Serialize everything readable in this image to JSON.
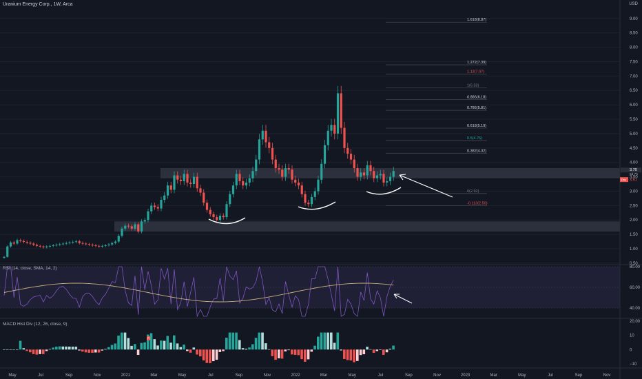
{
  "header": {
    "title": "Uranium Energy Corp., 1W, Arca",
    "currency": "USD"
  },
  "rsi_label": "RSI (14, close, SMA, 14, 2)",
  "macd_label": "MACD Hist Div (12, 26, close, 9)",
  "macd_marker": "R",
  "price_tags": {
    "current": "3.70",
    "countdown": "5d 7h",
    "pre": "3.51",
    "pre_label": "Pre"
  },
  "x_axis_labels": [
    "May",
    "Jul",
    "Sep",
    "Nov",
    "2021",
    "Mar",
    "May",
    "Jul",
    "Sep",
    "Nov",
    "2022",
    "Mar",
    "May",
    "Jul",
    "Sep",
    "Nov",
    "2023",
    "Mar",
    "May",
    "Jul",
    "Sep",
    "Nov"
  ],
  "chart_data": {
    "type": "candlestick",
    "title": "Uranium Energy Corp., 1W, Arca",
    "y_axis_ticks": [
      0.5,
      1.0,
      1.5,
      2.0,
      2.5,
      3.0,
      3.5,
      4.0,
      4.5,
      5.0,
      5.5,
      6.0,
      6.5,
      7.0,
      7.5,
      8.0,
      8.5,
      9.0
    ],
    "y_axis_tick_labels": [
      "0.50",
      "1.00",
      "1.50",
      "2.00",
      "2.50",
      "3.00",
      "3.50",
      "4.00",
      "4.50",
      "5.00",
      "5.50",
      "6.00",
      "6.50",
      "7.00",
      "7.50",
      "8.00",
      "8.50",
      "9.00"
    ],
    "ylim": [
      0.45,
      9.45
    ],
    "colors": {
      "up": "#26a69a",
      "down": "#ef5350",
      "rsi": "#7e57c2",
      "rsi_ma": "#c9b37e",
      "fib_gold": "#d1d4dc"
    },
    "candles_close": [
      0.72,
      1.08,
      1.22,
      1.18,
      1.3,
      1.27,
      1.24,
      1.21,
      1.18,
      1.14,
      1.1,
      1.08,
      1.05,
      1.08,
      1.1,
      1.12,
      1.14,
      1.16,
      1.18,
      1.2,
      1.22,
      1.24,
      1.26,
      1.2,
      1.18,
      1.16,
      1.14,
      1.12,
      1.1,
      1.08,
      1.1,
      1.12,
      1.15,
      1.2,
      1.25,
      1.45,
      1.7,
      1.8,
      1.78,
      1.7,
      1.85,
      1.6,
      1.95,
      2.0,
      2.3,
      2.5,
      2.45,
      2.4,
      2.7,
      2.85,
      3.2,
      3.05,
      3.55,
      3.4,
      3.35,
      3.6,
      3.3,
      3.25,
      3.5,
      3.1,
      2.95,
      2.6,
      2.35,
      2.2,
      2.1,
      2.0,
      2.15,
      2.1,
      2.55,
      2.9,
      3.2,
      3.6,
      3.35,
      3.2,
      3.3,
      3.45,
      3.7,
      4.1,
      4.8,
      5.1,
      4.7,
      4.5,
      4.1,
      3.8,
      3.75,
      3.5,
      3.8,
      3.75,
      3.4,
      3.3,
      3.2,
      2.9,
      2.6,
      2.55,
      2.8,
      3.0,
      3.4,
      3.95,
      4.6,
      5.1,
      5.3,
      5.0,
      6.4,
      5.2,
      4.5,
      4.3,
      4.1,
      3.8,
      3.5,
      3.65,
      3.55,
      3.9,
      3.7,
      3.45,
      3.55,
      3.6,
      3.3,
      3.35,
      3.5,
      3.7
    ],
    "fib_levels": [
      {
        "label": "1.618(8.87)",
        "value": 8.87,
        "color": "#d1d4dc"
      },
      {
        "label": "1.272(7.39)",
        "value": 7.39,
        "color": "#d1d4dc"
      },
      {
        "label": "1.13(7.07)",
        "value": 7.07,
        "color": "#ef5350"
      },
      {
        "label": "1(6.59)",
        "value": 6.59,
        "color": "#787b86"
      },
      {
        "label": "0.886(6.18)",
        "value": 6.18,
        "color": "#d1d4dc"
      },
      {
        "label": "0.786(5.81)",
        "value": 5.81,
        "color": "#d1d4dc"
      },
      {
        "label": "0.618(5.19)",
        "value": 5.19,
        "color": "#d1d4dc"
      },
      {
        "label": "0.5(4.76)",
        "value": 4.76,
        "color": "#26a69a"
      },
      {
        "label": "0.382(4.32)",
        "value": 4.32,
        "color": "#d1d4dc"
      },
      {
        "label": "0(2.92)",
        "value": 2.92,
        "color": "#787b86"
      },
      {
        "label": "-0.113(2.50)",
        "value": 2.5,
        "color": "#ef5350"
      }
    ],
    "zones": [
      {
        "from": 3.45,
        "to": 3.8
      },
      {
        "from": 1.6,
        "to": 1.95
      }
    ],
    "rsi": {
      "ticks": [
        40,
        60,
        80
      ],
      "tick_labels": [
        "40.00",
        "60.00",
        "80.00"
      ],
      "ylim": [
        30,
        82
      ],
      "band": [
        40,
        80
      ]
    },
    "macd": {
      "ticks": [
        -10,
        0,
        10,
        20
      ],
      "tick_labels": [
        "−10",
        "0",
        "10",
        "20.00"
      ],
      "ylim": [
        -13,
        22
      ]
    }
  }
}
